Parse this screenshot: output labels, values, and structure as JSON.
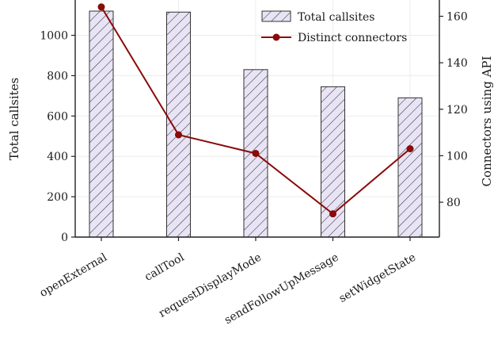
{
  "chart_data": {
    "type": "bar",
    "categories": [
      "openExternal",
      "callTool",
      "requestDisplayMode",
      "sendFollowUpMessage",
      "setWidgetState"
    ],
    "series": [
      {
        "name": "Total callsites",
        "type": "bar",
        "axis": "left",
        "values": [
          1120,
          1115,
          830,
          745,
          690
        ],
        "color": "#e8e4f5",
        "edge_color": "#333333",
        "hatch": "diagonal"
      },
      {
        "name": "Distinct connectors",
        "type": "line",
        "axis": "right",
        "values": [
          164,
          109,
          101,
          75,
          103
        ],
        "color": "#8b0a0a"
      }
    ],
    "ylabel": "Total callsites",
    "ylabel_right": "Connectors using API",
    "yticks_left": [
      0,
      200,
      400,
      600,
      800,
      1000
    ],
    "yticks_right": [
      80,
      100,
      120,
      140,
      160
    ],
    "ylim_left": [
      0,
      1175
    ],
    "ylim_right": [
      65,
      167
    ],
    "legend_position": "top-right",
    "grid": true
  }
}
